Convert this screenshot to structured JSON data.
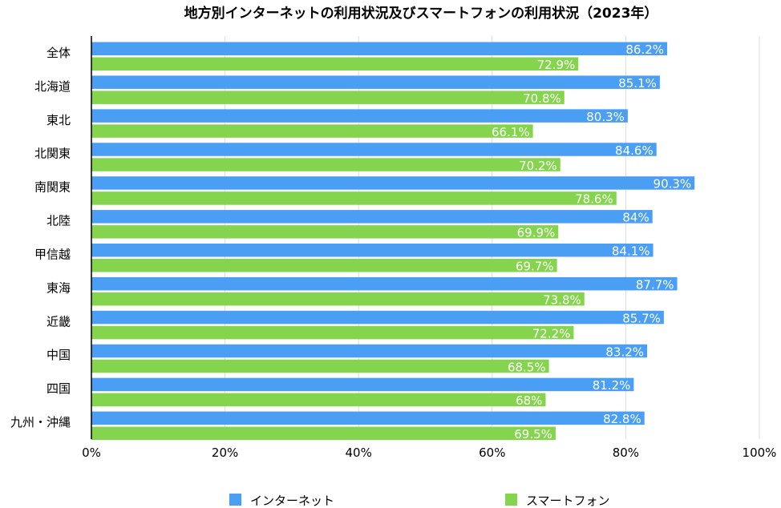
{
  "chart_data": {
    "type": "bar",
    "orientation": "horizontal",
    "title": "地方別インターネットの利用状況及びスマートフォンの利用状況（2023年）",
    "categories": [
      "全体",
      "北海道",
      "東北",
      "北関東",
      "南関東",
      "北陸",
      "甲信越",
      "東海",
      "近畿",
      "中国",
      "四国",
      "九州・沖縄"
    ],
    "series": [
      {
        "name": "インターネット",
        "color": "#4a9ff5",
        "values": [
          86.2,
          85.1,
          80.3,
          84.6,
          90.3,
          84,
          84.1,
          87.7,
          85.7,
          83.2,
          81.2,
          82.8
        ],
        "labels": [
          "86.2%",
          "85.1%",
          "80.3%",
          "84.6%",
          "90.3%",
          "84%",
          "84.1%",
          "87.7%",
          "85.7%",
          "83.2%",
          "81.2%",
          "82.8%"
        ]
      },
      {
        "name": "スマートフォン",
        "color": "#84d44d",
        "values": [
          72.9,
          70.8,
          66.1,
          70.2,
          78.6,
          69.9,
          69.7,
          73.8,
          72.2,
          68.5,
          68,
          69.5
        ],
        "labels": [
          "72.9%",
          "70.8%",
          "66.1%",
          "70.2%",
          "78.6%",
          "69.9%",
          "69.7%",
          "73.8%",
          "72.2%",
          "68.5%",
          "68%",
          "69.5%"
        ]
      }
    ],
    "xlim": [
      0,
      100
    ],
    "x_ticks": [
      0,
      20,
      40,
      60,
      80,
      100
    ],
    "x_tick_labels": [
      "0%",
      "20%",
      "40%",
      "60%",
      "80%",
      "100%"
    ],
    "grid": "vertical",
    "legend_position": "bottom",
    "data_labels": "inside-end"
  }
}
